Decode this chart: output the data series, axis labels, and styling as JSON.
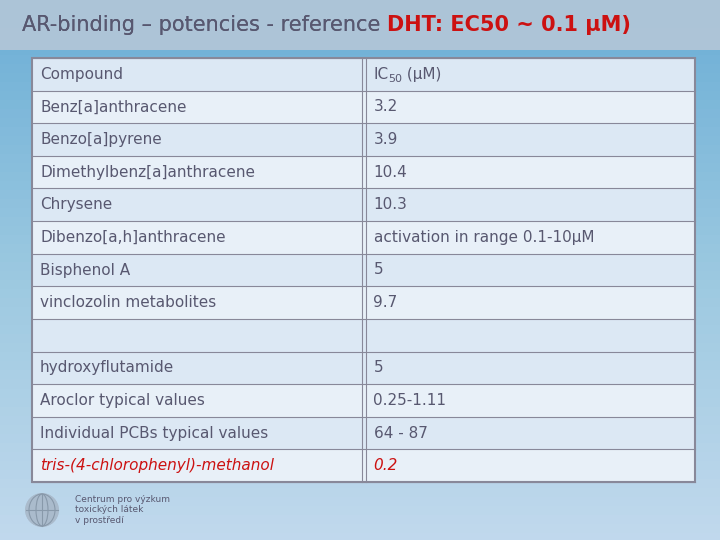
{
  "title_normal": "AR-binding – potencies - reference ",
  "title_bold_red": "DHT: EC50 ~ 0.1 μM)",
  "background_top": "#c8d4e0",
  "background_bottom": "#d4e0ec",
  "title_bg": "#b8c8d8",
  "table_border_color": "#888899",
  "table_bg_even": "#dce8f4",
  "table_bg_odd": "#e8f0f8",
  "table_bg_gap": "#dce8f4",
  "text_color": "#585870",
  "red_color": "#cc1111",
  "header_row": [
    "Compound",
    "IC50 (μM)"
  ],
  "rows_group1": [
    [
      "Benz[a]anthracene",
      "3.2"
    ],
    [
      "Benzo[a]pyrene",
      "3.9"
    ],
    [
      "Dimethylbenz[a]anthracene",
      "10.4"
    ],
    [
      "Chrysene",
      "10.3"
    ],
    [
      "Dibenzo[a,h]anthracene",
      "activation in range 0.1-10μM"
    ],
    [
      "Bisphenol A",
      "5"
    ],
    [
      "vinclozolin metabolites",
      "9.7"
    ]
  ],
  "rows_group2": [
    [
      "hydroxyflutamide",
      "5"
    ],
    [
      "Aroclor typical values",
      "0.25-1.11"
    ],
    [
      "Individual PCBs typical values",
      "64 - 87"
    ],
    [
      "tris-(4-chlorophenyl)-methanol",
      "0.2"
    ]
  ],
  "title_fontsize": 15,
  "cell_fontsize": 11,
  "fig_width": 7.2,
  "fig_height": 5.4,
  "dpi": 100
}
